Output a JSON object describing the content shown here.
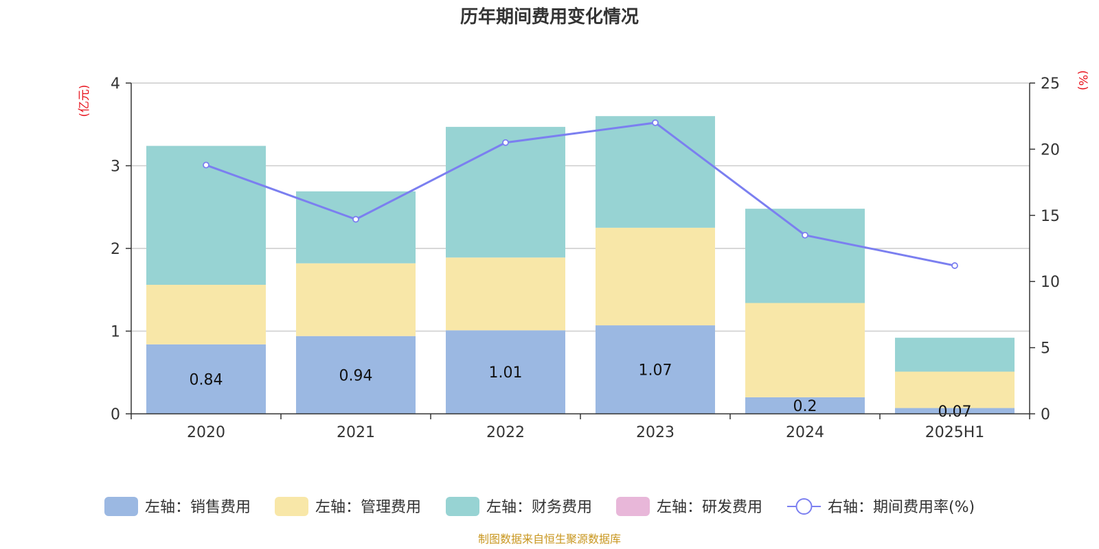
{
  "chart_data": {
    "type": "bar",
    "stacked": true,
    "title": "历年期间费用变化情况",
    "categories": [
      "2020",
      "2021",
      "2022",
      "2023",
      "2024",
      "2025H1"
    ],
    "series": [
      {
        "name": "左轴：销售费用",
        "axis": "left",
        "type": "bar",
        "color": "#9bb8e2",
        "values": [
          0.84,
          0.94,
          1.01,
          1.07,
          0.2,
          0.07
        ],
        "data_labels": [
          "0.84",
          "0.94",
          "1.01",
          "1.07",
          "0.2",
          "0.07"
        ]
      },
      {
        "name": "左轴：管理费用",
        "axis": "left",
        "type": "bar",
        "color": "#f8e7a8",
        "values": [
          0.72,
          0.88,
          0.88,
          1.18,
          1.14,
          0.44
        ]
      },
      {
        "name": "左轴：财务费用",
        "axis": "left",
        "type": "bar",
        "color": "#97d3d3",
        "values": [
          1.68,
          0.87,
          1.58,
          1.35,
          1.14,
          0.41
        ]
      },
      {
        "name": "左轴：研发费用",
        "axis": "left",
        "type": "bar",
        "color": "#e8b7d9",
        "values": [
          0,
          0,
          0,
          0,
          0,
          0
        ]
      },
      {
        "name": "右轴：期间费用率(%)",
        "axis": "right",
        "type": "line",
        "color": "#7b7ff0",
        "values": [
          18.8,
          14.7,
          20.5,
          22.0,
          13.5,
          11.2
        ]
      }
    ],
    "left_axis": {
      "unit": "(亿元)",
      "min": 0,
      "max": 4,
      "ticks": [
        "0",
        "1",
        "2",
        "3",
        "4"
      ]
    },
    "right_axis": {
      "unit": "(%)",
      "min": 0,
      "max": 25,
      "ticks": [
        "0",
        "5",
        "10",
        "15",
        "20",
        "25"
      ]
    },
    "grid": true,
    "legend_position": "bottom",
    "source": "制图数据来自恒生聚源数据库",
    "unit_color": "#e8141e",
    "source_color": "#c8961e"
  }
}
